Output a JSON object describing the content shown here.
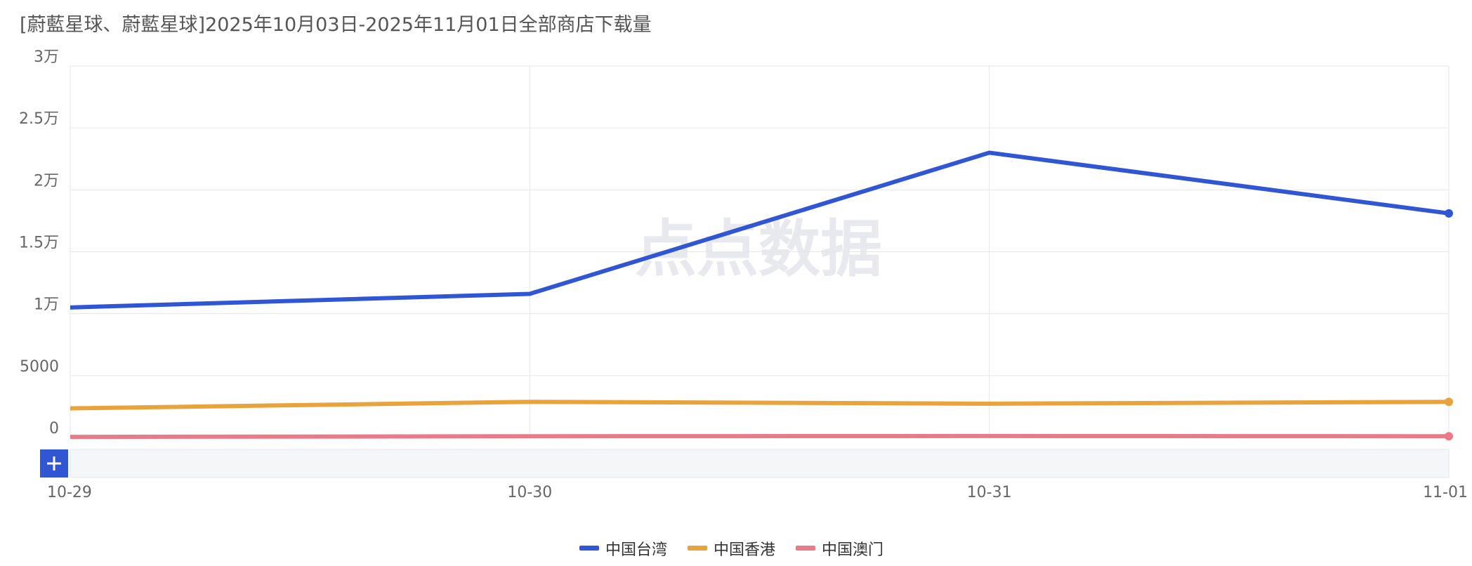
{
  "chart_data": {
    "type": "line",
    "title": "[蔚藍星球、蔚藍星球]2025年10月03日-2025年11月01日全部商店下载量",
    "watermark": "点点数据",
    "categories": [
      "10-29",
      "10-30",
      "10-31",
      "11-01"
    ],
    "series": [
      {
        "name": "中国台湾",
        "color": "#3056d3",
        "values": [
          10500,
          11600,
          23000,
          18100
        ]
      },
      {
        "name": "中国香港",
        "color": "#e8a33d",
        "values": [
          2350,
          2880,
          2730,
          2880
        ]
      },
      {
        "name": "中国澳门",
        "color": "#ea7a87",
        "values": [
          50,
          100,
          120,
          100
        ]
      }
    ],
    "ylim": [
      0,
      30000
    ],
    "yticks": [
      0,
      5000,
      {
        "value": 10000,
        "label": "1万"
      },
      {
        "value": 15000,
        "label": "1.5万"
      },
      {
        "value": 20000,
        "label": "2万"
      },
      {
        "value": 25000,
        "label": "2.5万"
      },
      {
        "value": 30000,
        "label": "3万"
      }
    ],
    "grid": true,
    "legend": "bottom"
  }
}
